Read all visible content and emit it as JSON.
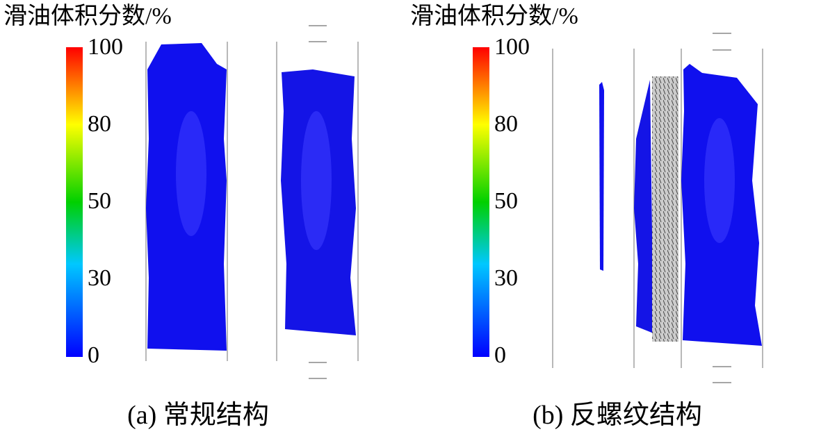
{
  "panels": [
    {
      "colorbar_title": "滑油体积分数/%",
      "colorbar_labels": [
        "100",
        "80",
        "50",
        "30",
        "0"
      ],
      "caption": "(a) 常规结构"
    },
    {
      "colorbar_title": "滑油体积分数/%",
      "colorbar_labels": [
        "100",
        "80",
        "50",
        "30",
        "0"
      ],
      "caption": "(b) 反螺纹结构"
    }
  ]
}
